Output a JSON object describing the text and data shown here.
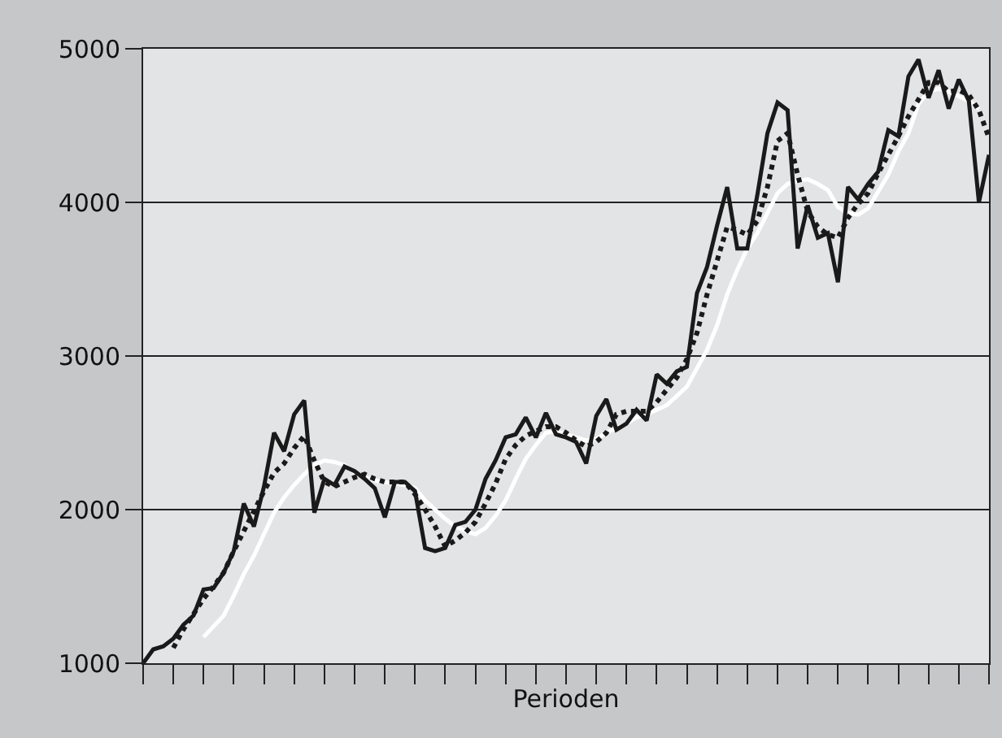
{
  "chart_data": {
    "type": "line",
    "xlabel": "Perioden",
    "categories": [
      null,
      null,
      null,
      null,
      null,
      null,
      null,
      null,
      null,
      null,
      null,
      null,
      null,
      null,
      null,
      null,
      null,
      null,
      null,
      null,
      null,
      null,
      null,
      null,
      null,
      null,
      null,
      null,
      null,
      null,
      null,
      null,
      null,
      null,
      null,
      null,
      null,
      null,
      null,
      null,
      null,
      null,
      null,
      null,
      null,
      null,
      null,
      null,
      null,
      null,
      null,
      null,
      null,
      null,
      null,
      null,
      null,
      null,
      null,
      null,
      null,
      null,
      null,
      null,
      null,
      null,
      null,
      null,
      null,
      null,
      null,
      null,
      null,
      null,
      null,
      null,
      null,
      null,
      null,
      null,
      null,
      null,
      null,
      null,
      null
    ],
    "ylim": [
      1000,
      5000
    ],
    "yticks": [
      1000,
      2000,
      3000,
      4000,
      5000
    ],
    "grid": "y",
    "tick_labels": "y",
    "marker": "none",
    "series": [
      {
        "color": "#ffffff",
        "line_style": "solid",
        "values": [
          null,
          null,
          null,
          null,
          null,
          null,
          1170,
          1240,
          1310,
          1440,
          1580,
          1700,
          1840,
          1980,
          2080,
          2160,
          2230,
          2290,
          2320,
          2310,
          2290,
          2240,
          2210,
          2190,
          2180,
          2170,
          2160,
          2140,
          2060,
          2000,
          1940,
          1890,
          1860,
          1840,
          1880,
          1960,
          2060,
          2200,
          2330,
          2420,
          2500,
          2510,
          2490,
          2470,
          2450,
          2460,
          2500,
          2530,
          2560,
          2600,
          2620,
          2650,
          2680,
          2740,
          2800,
          2920,
          3040,
          3200,
          3400,
          3560,
          3700,
          3800,
          3930,
          4060,
          4120,
          4140,
          4150,
          4120,
          4080,
          3970,
          3930,
          3920,
          3960,
          4070,
          4180,
          4330,
          4450,
          4640,
          4720,
          4740,
          4720,
          4690,
          4660,
          4610,
          null
        ]
      },
      {
        "color": "#1a1a1a",
        "line_style": "dotted",
        "values": [
          null,
          null,
          null,
          1100,
          1220,
          1320,
          1420,
          1500,
          1590,
          1730,
          1860,
          1990,
          2120,
          2240,
          2300,
          2400,
          2480,
          2320,
          2180,
          2150,
          2180,
          2210,
          2230,
          2200,
          2180,
          2180,
          2180,
          2100,
          2000,
          1890,
          1760,
          1800,
          1850,
          1920,
          2040,
          2170,
          2330,
          2420,
          2480,
          2510,
          2540,
          2540,
          2500,
          2450,
          2410,
          2440,
          2500,
          2620,
          2640,
          2640,
          2640,
          2700,
          2780,
          2860,
          2980,
          3150,
          3400,
          3620,
          3840,
          3820,
          3790,
          3880,
          4100,
          4400,
          4450,
          4180,
          3940,
          3840,
          3790,
          3770,
          3900,
          3990,
          4060,
          4190,
          4310,
          4430,
          4560,
          4670,
          4780,
          4780,
          4720,
          4730,
          4700,
          4600,
          4420
        ]
      },
      {
        "color": "#1a1a1a",
        "line_style": "solid",
        "values": [
          1000,
          1090,
          1110,
          1160,
          1250,
          1310,
          1480,
          1490,
          1590,
          1730,
          2040,
          1890,
          2150,
          2500,
          2380,
          2620,
          2710,
          1980,
          2200,
          2160,
          2280,
          2250,
          2200,
          2140,
          1950,
          2180,
          2180,
          2120,
          1750,
          1730,
          1750,
          1900,
          1920,
          2000,
          2200,
          2320,
          2470,
          2490,
          2600,
          2470,
          2630,
          2490,
          2470,
          2440,
          2300,
          2610,
          2720,
          2520,
          2560,
          2650,
          2580,
          2880,
          2820,
          2900,
          2930,
          3410,
          3580,
          3850,
          4100,
          3700,
          3700,
          4050,
          4450,
          4650,
          4600,
          3700,
          3980,
          3770,
          3800,
          3480,
          4100,
          4020,
          4120,
          4200,
          4470,
          4430,
          4820,
          4930,
          4680,
          4860,
          4610,
          4800,
          4660,
          4000,
          4310
        ]
      }
    ]
  }
}
